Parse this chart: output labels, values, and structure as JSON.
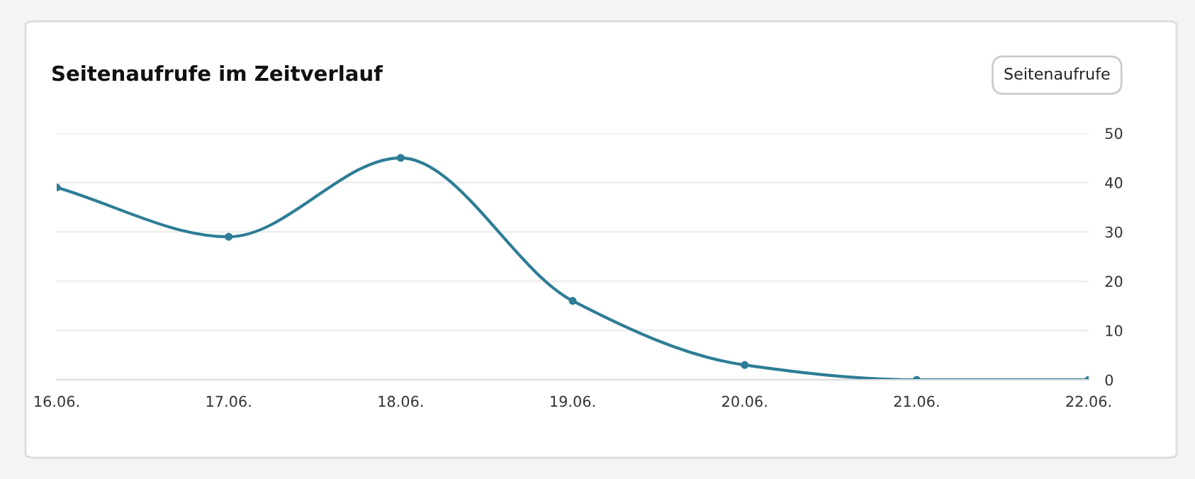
{
  "chart_data": {
    "type": "line",
    "title": "Seitenaufrufe im Zeitverlauf",
    "categories": [
      "16.06.",
      "17.06.",
      "18.06.",
      "19.06.",
      "20.06.",
      "21.06.",
      "22.06."
    ],
    "series": [
      {
        "color": "#2e7d96",
        "values": [
          39,
          29,
          45,
          16,
          3,
          0,
          0
        ]
      }
    ],
    "ylim": [
      0,
      50
    ],
    "yticks": [
      0,
      10,
      20,
      30,
      40,
      50
    ],
    "grid": "y",
    "marker": "circle",
    "line_style": "solid",
    "annotations": [
      "Seitenaufrufe"
    ]
  }
}
